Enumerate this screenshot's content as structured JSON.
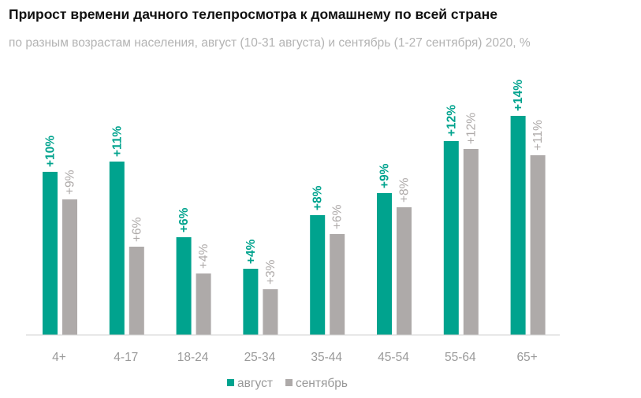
{
  "title": "Прирост времени дачного телепросмотра к домашнему по всей стране",
  "subtitle": "по разным возрастам населения, август (10-31 августа) и сентябрь (1-27 сентября) 2020, %",
  "chart_data": {
    "type": "bar",
    "title": "Прирост времени дачного телепросмотра к домашнему по всей стране",
    "categories": [
      "4+",
      "4-17",
      "18-24",
      "25-34",
      "35-44",
      "45-54",
      "55-64",
      "65+"
    ],
    "series": [
      {
        "name": "август",
        "color": "#00a38e",
        "values": [
          10.35,
          11.0,
          6.2,
          4.2,
          7.6,
          9.0,
          12.3,
          13.9
        ],
        "labels": [
          "+10%",
          "+11%",
          "+6%",
          "+4%",
          "+8%",
          "+9%",
          "+12%",
          "+14%"
        ]
      },
      {
        "name": "сентябрь",
        "color": "#aeaaa9",
        "values": [
          8.6,
          5.6,
          3.9,
          2.9,
          6.4,
          8.1,
          11.8,
          11.4
        ],
        "labels": [
          "+9%",
          "+6%",
          "+4%",
          "+3%",
          "+6%",
          "+8%",
          "+12%",
          "+11%"
        ]
      }
    ],
    "ylim": [
      0,
      15
    ],
    "grid": false,
    "legend": "bottom"
  }
}
